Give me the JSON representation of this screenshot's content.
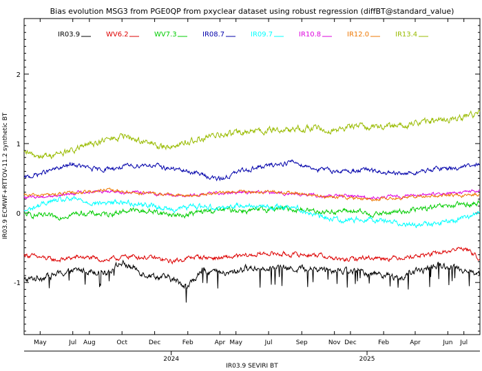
{
  "chart_data": {
    "type": "line",
    "title": "Bias evolution MSG3 from PGE0QP from pxyclear dataset using robust regression (diffBT@standard_value)",
    "xlabel": "IR03.9 SEVIRI BT",
    "ylabel": "IR03.9 ECMWF+RTTOV-11.2 synthetic BT",
    "x_range": [
      "2023-04-01",
      "2025-07-31"
    ],
    "ylim": [
      -1.75,
      2.8
    ],
    "y_ticks": [
      -1,
      0,
      1,
      2
    ],
    "month_ticks": [
      {
        "label": "May",
        "date": "2023-05-01"
      },
      {
        "label": "Jul",
        "date": "2023-07-01"
      },
      {
        "label": "Aug",
        "date": "2023-08-01"
      },
      {
        "label": "Oct",
        "date": "2023-10-01"
      },
      {
        "label": "Dec",
        "date": "2023-12-01"
      },
      {
        "label": "Feb",
        "date": "2024-02-01"
      },
      {
        "label": "Apr",
        "date": "2024-04-01"
      },
      {
        "label": "May",
        "date": "2024-05-01"
      },
      {
        "label": "Jul",
        "date": "2024-07-01"
      },
      {
        "label": "Sep",
        "date": "2024-09-01"
      },
      {
        "label": "Nov",
        "date": "2024-11-01"
      },
      {
        "label": "Dec",
        "date": "2024-12-01"
      },
      {
        "label": "Feb",
        "date": "2025-02-01"
      },
      {
        "label": "Apr",
        "date": "2025-04-01"
      },
      {
        "label": "Jun",
        "date": "2025-06-01"
      },
      {
        "label": "Jul",
        "date": "2025-07-01"
      }
    ],
    "year_ticks": [
      {
        "label": "2024",
        "date": "2024-01-01"
      },
      {
        "label": "2025",
        "date": "2025-01-01"
      }
    ],
    "grid": false,
    "legend_position": "top",
    "series": [
      {
        "name": "IR03.9",
        "color": "#000000",
        "points": [
          [
            "2023-04-01",
            -0.97
          ],
          [
            "2023-06-01",
            -0.88
          ],
          [
            "2023-07-15",
            -0.82
          ],
          [
            "2023-09-01",
            -0.85
          ],
          [
            "2023-10-01",
            -0.72
          ],
          [
            "2023-11-15",
            -0.88
          ],
          [
            "2024-01-01",
            -0.95
          ],
          [
            "2024-02-01",
            -1.05
          ],
          [
            "2024-03-01",
            -0.82
          ],
          [
            "2024-04-15",
            -0.88
          ],
          [
            "2024-05-15",
            -0.8
          ],
          [
            "2024-07-01",
            -0.78
          ],
          [
            "2024-08-15",
            -0.8
          ],
          [
            "2024-10-01",
            -0.8
          ],
          [
            "2024-11-15",
            -0.82
          ],
          [
            "2024-12-15",
            -0.85
          ],
          [
            "2025-02-01",
            -0.88
          ],
          [
            "2025-03-01",
            -0.95
          ],
          [
            "2025-04-01",
            -0.85
          ],
          [
            "2025-05-15",
            -0.75
          ],
          [
            "2025-06-15",
            -0.78
          ],
          [
            "2025-07-31",
            -0.88
          ]
        ]
      },
      {
        "name": "WV6.2",
        "color": "#dd0000",
        "points": [
          [
            "2023-04-01",
            -0.6
          ],
          [
            "2023-06-01",
            -0.68
          ],
          [
            "2023-07-15",
            -0.63
          ],
          [
            "2023-09-01",
            -0.68
          ],
          [
            "2023-10-15",
            -0.62
          ],
          [
            "2023-12-01",
            -0.65
          ],
          [
            "2024-01-01",
            -0.7
          ],
          [
            "2024-02-15",
            -0.63
          ],
          [
            "2024-04-01",
            -0.65
          ],
          [
            "2024-05-15",
            -0.62
          ],
          [
            "2024-07-01",
            -0.58
          ],
          [
            "2024-08-15",
            -0.6
          ],
          [
            "2024-10-01",
            -0.6
          ],
          [
            "2024-11-15",
            -0.68
          ],
          [
            "2025-01-01",
            -0.64
          ],
          [
            "2025-02-15",
            -0.65
          ],
          [
            "2025-04-01",
            -0.62
          ],
          [
            "2025-05-15",
            -0.58
          ],
          [
            "2025-07-01",
            -0.5
          ],
          [
            "2025-07-31",
            -0.65
          ]
        ]
      },
      {
        "name": "WV7.3",
        "color": "#00cc00",
        "points": [
          [
            "2023-04-01",
            -0.02
          ],
          [
            "2023-06-01",
            -0.06
          ],
          [
            "2023-07-15",
            0.0
          ],
          [
            "2023-09-01",
            -0.02
          ],
          [
            "2023-10-15",
            0.04
          ],
          [
            "2023-12-01",
            0.02
          ],
          [
            "2024-01-15",
            -0.04
          ],
          [
            "2024-03-01",
            0.02
          ],
          [
            "2024-04-15",
            0.05
          ],
          [
            "2024-06-01",
            0.03
          ],
          [
            "2024-07-15",
            0.07
          ],
          [
            "2024-09-01",
            0.05
          ],
          [
            "2024-10-15",
            0.02
          ],
          [
            "2024-12-01",
            0.03
          ],
          [
            "2025-01-15",
            -0.02
          ],
          [
            "2025-03-01",
            0.02
          ],
          [
            "2025-04-15",
            0.06
          ],
          [
            "2025-06-01",
            0.1
          ],
          [
            "2025-07-31",
            0.14
          ]
        ]
      },
      {
        "name": "IR08.7",
        "color": "#0000aa",
        "points": [
          [
            "2023-04-01",
            0.5
          ],
          [
            "2023-05-15",
            0.6
          ],
          [
            "2023-07-01",
            0.7
          ],
          [
            "2023-08-15",
            0.62
          ],
          [
            "2023-10-01",
            0.66
          ],
          [
            "2023-11-15",
            0.7
          ],
          [
            "2024-01-01",
            0.64
          ],
          [
            "2024-02-15",
            0.58
          ],
          [
            "2024-04-01",
            0.48
          ],
          [
            "2024-05-15",
            0.62
          ],
          [
            "2024-07-01",
            0.68
          ],
          [
            "2024-08-15",
            0.74
          ],
          [
            "2024-10-01",
            0.63
          ],
          [
            "2024-11-15",
            0.6
          ],
          [
            "2025-01-01",
            0.62
          ],
          [
            "2025-02-15",
            0.56
          ],
          [
            "2025-04-01",
            0.58
          ],
          [
            "2025-05-15",
            0.64
          ],
          [
            "2025-07-01",
            0.66
          ],
          [
            "2025-07-31",
            0.7
          ]
        ]
      },
      {
        "name": "IR09.7",
        "color": "#00ffff",
        "points": [
          [
            "2023-04-01",
            0.02
          ],
          [
            "2023-05-15",
            0.16
          ],
          [
            "2023-07-01",
            0.2
          ],
          [
            "2023-08-15",
            0.14
          ],
          [
            "2023-10-01",
            0.16
          ],
          [
            "2023-11-15",
            0.12
          ],
          [
            "2024-01-01",
            0.05
          ],
          [
            "2024-02-15",
            0.1
          ],
          [
            "2024-04-01",
            0.08
          ],
          [
            "2024-05-15",
            0.12
          ],
          [
            "2024-07-01",
            0.08
          ],
          [
            "2024-08-15",
            0.1
          ],
          [
            "2024-10-01",
            -0.05
          ],
          [
            "2024-11-15",
            -0.1
          ],
          [
            "2025-01-01",
            -0.08
          ],
          [
            "2025-02-15",
            -0.12
          ],
          [
            "2025-04-01",
            -0.18
          ],
          [
            "2025-05-15",
            -0.15
          ],
          [
            "2025-07-01",
            -0.08
          ],
          [
            "2025-07-31",
            0.02
          ]
        ]
      },
      {
        "name": "IR10.8",
        "color": "#dd00dd",
        "points": [
          [
            "2023-04-01",
            0.22
          ],
          [
            "2023-06-01",
            0.25
          ],
          [
            "2023-07-15",
            0.3
          ],
          [
            "2023-09-01",
            0.32
          ],
          [
            "2023-10-15",
            0.3
          ],
          [
            "2023-12-01",
            0.28
          ],
          [
            "2024-01-15",
            0.25
          ],
          [
            "2024-03-01",
            0.27
          ],
          [
            "2024-04-15",
            0.3
          ],
          [
            "2024-06-01",
            0.3
          ],
          [
            "2024-07-15",
            0.29
          ],
          [
            "2024-09-01",
            0.27
          ],
          [
            "2024-10-15",
            0.24
          ],
          [
            "2024-12-01",
            0.25
          ],
          [
            "2025-01-15",
            0.22
          ],
          [
            "2025-03-01",
            0.24
          ],
          [
            "2025-04-15",
            0.26
          ],
          [
            "2025-06-01",
            0.28
          ],
          [
            "2025-07-31",
            0.32
          ]
        ]
      },
      {
        "name": "IR12.0",
        "color": "#ee7700",
        "points": [
          [
            "2023-04-01",
            0.25
          ],
          [
            "2023-06-01",
            0.27
          ],
          [
            "2023-07-15",
            0.3
          ],
          [
            "2023-09-01",
            0.33
          ],
          [
            "2023-10-15",
            0.3
          ],
          [
            "2023-12-01",
            0.28
          ],
          [
            "2024-01-15",
            0.25
          ],
          [
            "2024-03-01",
            0.26
          ],
          [
            "2024-04-15",
            0.3
          ],
          [
            "2024-06-01",
            0.31
          ],
          [
            "2024-07-15",
            0.3
          ],
          [
            "2024-09-01",
            0.28
          ],
          [
            "2024-10-15",
            0.23
          ],
          [
            "2024-12-01",
            0.22
          ],
          [
            "2025-01-15",
            0.2
          ],
          [
            "2025-03-01",
            0.22
          ],
          [
            "2025-04-15",
            0.24
          ],
          [
            "2025-06-01",
            0.25
          ],
          [
            "2025-07-31",
            0.27
          ]
        ]
      },
      {
        "name": "IR13.4",
        "color": "#99bb00",
        "points": [
          [
            "2023-04-01",
            0.85
          ],
          [
            "2023-05-15",
            0.82
          ],
          [
            "2023-07-01",
            0.9
          ],
          [
            "2023-08-15",
            1.02
          ],
          [
            "2023-10-01",
            1.1
          ],
          [
            "2023-11-01",
            1.05
          ],
          [
            "2023-12-15",
            0.95
          ],
          [
            "2024-02-01",
            1.02
          ],
          [
            "2024-03-15",
            1.1
          ],
          [
            "2024-05-01",
            1.15
          ],
          [
            "2024-06-15",
            1.18
          ],
          [
            "2024-08-01",
            1.2
          ],
          [
            "2024-09-15",
            1.22
          ],
          [
            "2024-11-01",
            1.2
          ],
          [
            "2024-12-15",
            1.25
          ],
          [
            "2025-02-01",
            1.25
          ],
          [
            "2025-03-15",
            1.28
          ],
          [
            "2025-05-01",
            1.32
          ],
          [
            "2025-06-15",
            1.35
          ],
          [
            "2025-07-31",
            1.45
          ]
        ]
      }
    ]
  }
}
